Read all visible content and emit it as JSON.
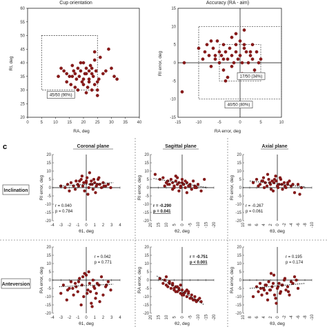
{
  "panel_letter": "c",
  "top_left": {
    "title": "Cup orientation",
    "xlabel": "RA, deg",
    "ylabel": "RI, deg",
    "box_label": "45/50 (90%)"
  },
  "top_right": {
    "title": "Accuracy (RA - aim)",
    "xlabel": "RA error, deg",
    "ylabel": "RI error, deg",
    "box_label_inner": "17/50 (34%)",
    "box_label_outer": "40/50 (80%)"
  },
  "columns": [
    "Coronal plane",
    "Sagittal plane",
    "Axial plane"
  ],
  "rows": [
    "Inclination",
    "Anteversion"
  ],
  "xlabels": [
    "θ1, deg",
    "θ2, deg",
    "θ3, deg"
  ],
  "row_ylabels": [
    "RI error, deg",
    "RA error, deg"
  ],
  "colors": {
    "marker": "#8b1a1a",
    "marker_edge": "#5a0d0d",
    "axis": "#000000",
    "box": "#333333"
  },
  "chart_data": [
    {
      "id": "cup-orientation",
      "type": "scatter",
      "title": "Cup orientation",
      "xlabel": "RA, deg",
      "ylabel": "RI, deg",
      "xlim": [
        0,
        40
      ],
      "ylim": [
        20,
        60
      ],
      "xticks": [
        0,
        5,
        10,
        15,
        20,
        25,
        30,
        35,
        40
      ],
      "yticks": [
        20,
        25,
        30,
        35,
        40,
        45,
        50,
        55,
        60
      ],
      "x": [
        12,
        13,
        14,
        15,
        15.5,
        16,
        16.5,
        17,
        17.5,
        18,
        18.5,
        19,
        19.5,
        20,
        20,
        20.5,
        21,
        21.5,
        22,
        22,
        22.5,
        23,
        23,
        23.5,
        24,
        24,
        24.5,
        25,
        25,
        25.5,
        26,
        27,
        28,
        29,
        30,
        31,
        32,
        19,
        21,
        17,
        14,
        16,
        23,
        21,
        20,
        18,
        22,
        25,
        24,
        11
      ],
      "y": [
        38,
        37,
        36,
        35,
        32,
        39,
        37,
        36,
        34,
        38,
        35,
        37,
        33,
        40,
        34,
        36,
        38,
        31,
        37,
        33,
        39,
        36,
        30,
        35,
        32,
        41,
        37,
        28,
        33,
        34,
        42,
        36,
        37,
        45,
        38,
        35,
        34,
        40,
        29,
        31,
        33,
        35,
        38,
        36,
        32,
        30,
        34,
        30,
        44,
        35
      ]
    },
    {
      "id": "accuracy",
      "type": "scatter",
      "title": "Accuracy (RA - aim)",
      "xlabel": "RA error, deg",
      "ylabel": "RI error, deg",
      "xlim": [
        -15,
        10
      ],
      "ylim": [
        -15,
        15
      ],
      "xticks": [
        -15,
        -10,
        -5,
        0,
        5,
        10
      ],
      "yticks": [
        -15,
        -10,
        -5,
        0,
        5,
        10,
        15
      ],
      "x": [
        -14,
        -13.5,
        -10,
        -9,
        -8.5,
        -8,
        -7.5,
        -7,
        -6.5,
        -6,
        -5.5,
        -5,
        -5,
        -4.5,
        -4,
        -4,
        -3.5,
        -3,
        -3,
        -2.5,
        -2,
        -2,
        -1.5,
        -1,
        -1,
        -0.5,
        0,
        0,
        0.5,
        1,
        1,
        1.5,
        2,
        2.5,
        3,
        3,
        3.5,
        4,
        4.5,
        5,
        -2,
        -6,
        -3.5,
        1,
        2.5,
        -1,
        -7,
        3.5,
        0.5,
        -4
      ],
      "y": [
        -8,
        0,
        4,
        1,
        3,
        5,
        2,
        -1,
        4,
        1,
        6,
        3,
        0,
        2,
        -2,
        5,
        3,
        1,
        -4,
        4,
        2,
        7,
        0,
        3,
        5,
        1,
        6,
        2,
        -3,
        4,
        9,
        3,
        0,
        2,
        5,
        1,
        -2,
        3,
        0,
        1,
        -1,
        2,
        -5,
        5,
        3,
        8,
        6,
        -3,
        0,
        1
      ]
    },
    {
      "id": "inclination-coronal",
      "type": "scatter",
      "xlabel": "θ1, deg",
      "ylabel": "RI error, deg",
      "xlim": [
        -4,
        4
      ],
      "ylim": [
        -20,
        20
      ],
      "xticks": [
        -4,
        -3,
        -2,
        -1,
        0,
        1,
        2,
        3,
        4
      ],
      "yticks": [
        -20,
        -15,
        -10,
        -5,
        0,
        5,
        10,
        15,
        20
      ],
      "r": "r = 0.040",
      "p": "p = 0.784",
      "trend": [
        [
          -3.2,
          1.0
        ],
        [
          3.2,
          3.0
        ]
      ],
      "x": [
        -3,
        -2.5,
        -2.2,
        -1.8,
        -1.5,
        -1.3,
        -1,
        -0.8,
        -0.6,
        -0.4,
        -0.2,
        0,
        0.1,
        0.3,
        0.5,
        0.6,
        0.8,
        1,
        1.2,
        1.4,
        1.6,
        1.8,
        2,
        2.3,
        2.6,
        2.9,
        -0.5,
        0.4,
        1.1,
        -1.2,
        0.2,
        -0.9,
        0.7,
        1.5,
        -0.3,
        0.9,
        2.1,
        -2,
        0,
        1.3
      ],
      "y": [
        1,
        0,
        2,
        3,
        1,
        -1,
        2,
        4,
        5,
        1,
        -2,
        3,
        6,
        0,
        2,
        4,
        -1,
        3,
        1,
        5,
        2,
        0,
        3,
        1,
        2,
        0,
        7,
        9,
        -3,
        4,
        -4,
        1,
        2,
        6,
        3,
        5,
        1,
        -2,
        4,
        2
      ]
    },
    {
      "id": "inclination-sagittal",
      "type": "scatter",
      "xlabel": "θ2, deg",
      "ylabel": "RI error, deg",
      "xlim": [
        -20,
        20
      ],
      "ylim": [
        -20,
        20
      ],
      "xreversed": true,
      "xticks": [
        20,
        15,
        10,
        5,
        0,
        -5,
        -10,
        -15,
        -20
      ],
      "yticks": [
        -20,
        -15,
        -10,
        -5,
        0,
        5,
        10,
        15,
        20
      ],
      "r": "r = -0.290",
      "p": "p = 0.041",
      "bold": true,
      "trend": [
        [
          18,
          5.5
        ],
        [
          -16,
          0
        ]
      ],
      "x": [
        17,
        14,
        12,
        10,
        9,
        8,
        7,
        6,
        5,
        4,
        3,
        2,
        1,
        0,
        -1,
        -2,
        -3,
        -4,
        -5,
        -6,
        -7,
        -8,
        -9,
        -10,
        -12,
        -14,
        6,
        3,
        1,
        -2,
        -5,
        9,
        4,
        -3,
        0,
        11,
        -8,
        2,
        -1,
        5
      ],
      "y": [
        8,
        5,
        6,
        3,
        4,
        2,
        5,
        3,
        1,
        4,
        2,
        3,
        1,
        5,
        2,
        0,
        3,
        1,
        2,
        -1,
        4,
        1,
        0,
        2,
        -2,
        5,
        -1,
        6,
        0,
        4,
        1,
        2,
        7,
        -3,
        3,
        1,
        0,
        -2,
        2,
        0
      ]
    },
    {
      "id": "inclination-axial",
      "type": "scatter",
      "xlabel": "θ3, deg",
      "ylabel": "RI error, deg",
      "xlim": [
        -10,
        10
      ],
      "ylim": [
        -20,
        20
      ],
      "xreversed": true,
      "xticks": [
        10,
        8,
        6,
        4,
        2,
        0,
        -2,
        -4,
        -6,
        -8,
        -10
      ],
      "yticks": [
        -20,
        -15,
        -10,
        -5,
        0,
        5,
        10,
        15,
        20
      ],
      "r": "r = -0.267",
      "p": "p = 0.061",
      "trend": [
        [
          8,
          4
        ],
        [
          -8,
          0.5
        ]
      ],
      "x": [
        7,
        6,
        5,
        4.5,
        4,
        3.5,
        3,
        2.5,
        2,
        1.5,
        1,
        0.5,
        0,
        -0.5,
        -1,
        -1.5,
        -2,
        -2.5,
        -3,
        -3.5,
        -4,
        -5,
        -6,
        -7,
        2.8,
        1.2,
        -0.8,
        -2.2,
        3.8,
        0.3,
        -1.3,
        5.5,
        -3,
        1.8,
        -4.5,
        0.8,
        -0.2,
        2.2,
        -6.5,
        4.2
      ],
      "y": [
        3,
        5,
        2,
        4,
        6,
        3,
        1,
        5,
        2,
        4,
        3,
        7,
        1,
        2,
        5,
        -1,
        3,
        0,
        2,
        4,
        1,
        -3,
        2,
        0,
        8,
        -2,
        6,
        1,
        0,
        4,
        2,
        1,
        3,
        -1,
        2,
        5,
        0,
        3,
        -4,
        4
      ]
    },
    {
      "id": "anteversion-coronal",
      "type": "scatter",
      "xlabel": "θ1, deg",
      "ylabel": "RA error, deg",
      "xlim": [
        -4,
        4
      ],
      "ylim": [
        -20,
        20
      ],
      "xticks": [
        -4,
        -3,
        -2,
        -1,
        0,
        1,
        2,
        3,
        4
      ],
      "yticks": [
        -20,
        -15,
        -10,
        -5,
        0,
        5,
        10,
        15,
        20
      ],
      "r": "r = 0.042",
      "p": "p = 0.771",
      "trend": [
        [
          -3.2,
          -4
        ],
        [
          3.2,
          -2.5
        ]
      ],
      "x": [
        -3,
        -2.7,
        -2.3,
        -2,
        -1.8,
        -1.5,
        -1.2,
        -1,
        -0.8,
        -0.5,
        -0.3,
        0,
        0.2,
        0.4,
        0.6,
        0.8,
        1,
        1.2,
        1.5,
        1.8,
        2,
        2.3,
        2.6,
        2.9,
        -0.6,
        0.3,
        1.1,
        -1.3,
        0.5,
        -0.2,
        0.9,
        -2.2,
        1.6,
        -0.9,
        0.1,
        2.4,
        -1.6,
        0.7,
        -0.4,
        1.3
      ],
      "y": [
        -8,
        -3,
        -12,
        -5,
        -1,
        -9,
        -4,
        -7,
        1,
        -3,
        -10,
        3,
        -6,
        -2,
        -14,
        0,
        -5,
        -8,
        -3,
        2,
        -9,
        -4,
        -1,
        -6,
        -15,
        5,
        -11,
        -2,
        -7,
        4,
        -4,
        -6,
        -13,
        -1,
        -8,
        -3,
        -5,
        -16,
        2,
        -2
      ]
    },
    {
      "id": "anteversion-sagittal",
      "type": "scatter",
      "xlabel": "θ2, deg",
      "ylabel": "RA error, deg",
      "xlim": [
        -20,
        20
      ],
      "ylim": [
        -20,
        20
      ],
      "xreversed": true,
      "xticks": [
        20,
        15,
        10,
        5,
        0,
        -5,
        -10,
        -15,
        -20
      ],
      "yticks": [
        -20,
        -15,
        -10,
        -5,
        0,
        5,
        10,
        15,
        20
      ],
      "r": "r = -0.751",
      "p": "p < 0.001",
      "bold": true,
      "trend": [
        [
          16,
          2.5
        ],
        [
          -14,
          -15
        ]
      ],
      "x": [
        14,
        12,
        11,
        10,
        9,
        8,
        7,
        6,
        5,
        4,
        3,
        2,
        1,
        0,
        -1,
        -2,
        -3,
        -4,
        -5,
        -6,
        -7,
        -8,
        -9,
        -10,
        -11,
        -12,
        8,
        5,
        2,
        -1,
        -4,
        10,
        3,
        0,
        -6,
        6,
        -3,
        1,
        -8,
        4
      ],
      "y": [
        1,
        -2,
        0,
        -3,
        -4,
        -2,
        -5,
        -3,
        -6,
        -4,
        -7,
        -5,
        -8,
        -6,
        -9,
        -7,
        -10,
        -8,
        -11,
        -9,
        -12,
        -10,
        -13,
        -12,
        -11,
        -13,
        -1,
        -5,
        -6,
        -8,
        -7,
        2,
        -4,
        -9,
        -11,
        -2,
        -6,
        -3,
        -12,
        -7
      ]
    },
    {
      "id": "anteversion-axial",
      "type": "scatter",
      "xlabel": "θ3, deg",
      "ylabel": "RA error, deg",
      "xlim": [
        -10,
        10
      ],
      "ylim": [
        -20,
        20
      ],
      "xreversed": true,
      "xticks": [
        10,
        8,
        6,
        4,
        2,
        0,
        -2,
        -4,
        -6,
        -8,
        -10
      ],
      "yticks": [
        -20,
        -15,
        -10,
        -5,
        0,
        5,
        10,
        15,
        20
      ],
      "r": "r = 0.195",
      "p": "p = 0.174",
      "trend": [
        [
          8,
          -5
        ],
        [
          -8,
          -2
        ]
      ],
      "x": [
        7,
        6,
        5.5,
        5,
        4.5,
        4,
        3.5,
        3,
        2.5,
        2,
        1.5,
        1,
        0.5,
        0,
        -0.5,
        -1,
        -1.5,
        -2,
        -2.5,
        -3,
        -3.5,
        -4,
        -5,
        -6,
        2.8,
        1.2,
        -0.8,
        -2.2,
        3.8,
        0.3,
        -1.3,
        4.8,
        -3.2,
        1.8,
        -4.5,
        0.8,
        -0.2,
        2.2,
        -5.5,
        3.2
      ],
      "y": [
        -10,
        -4,
        -7,
        -2,
        -9,
        -5,
        -3,
        -8,
        -1,
        -6,
        -4,
        3,
        -11,
        -5,
        -2,
        -7,
        -3,
        0,
        -6,
        -4,
        -9,
        -1,
        2,
        -5,
        -12,
        -2,
        -8,
        1,
        -6,
        -14,
        -3,
        -5,
        -7,
        4,
        -2,
        -9,
        -4,
        -6,
        0,
        -3
      ]
    }
  ]
}
